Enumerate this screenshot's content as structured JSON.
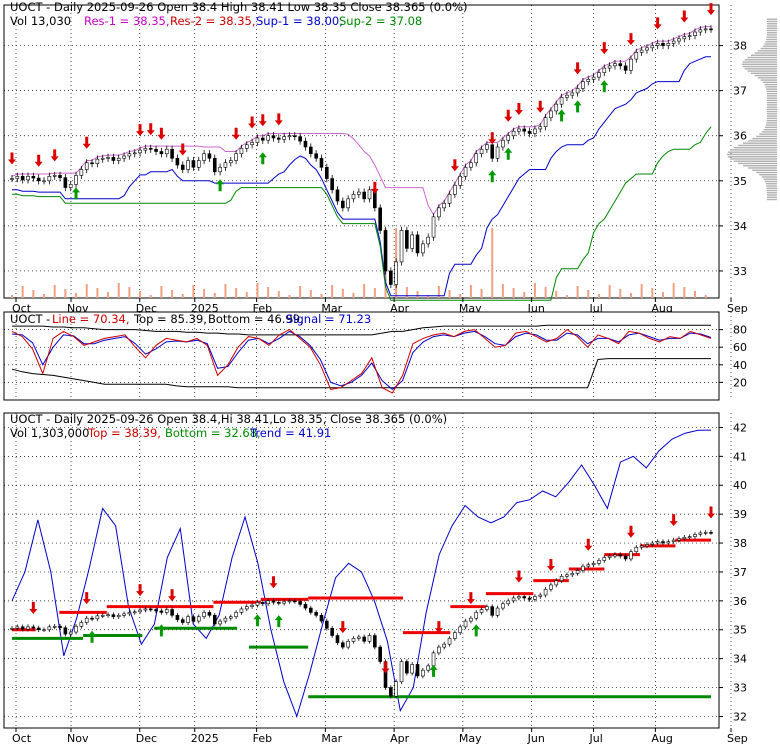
{
  "chart_data": [
    {
      "type": "candlestick",
      "header": {
        "title": "UOCT - Daily 2025-09-26 Open 38.4  High 38.41  Low 38.35  Close 38.365 (0.0%)",
        "vol": "Vol 13,030",
        "res1": "Res-1 = 38.35,",
        "res2": "Res-2 = 38.35,",
        "sup1": "Sup-1 = 38.00,",
        "sup2": "Sup-2 = 37.08"
      },
      "x_tick_labels": [
        "Oct",
        "Nov",
        "Dec",
        "2025",
        "Feb",
        "Mar",
        "Apr",
        "May",
        "Jun",
        "Jul",
        "Aug",
        "Sep"
      ],
      "x_tick_pos": [
        0.02,
        0.1,
        0.2,
        0.28,
        0.37,
        0.47,
        0.57,
        0.67,
        0.77,
        0.86,
        0.95,
        1.06
      ],
      "y_ticks": [
        33,
        34,
        35,
        36,
        37,
        38
      ],
      "ylim": [
        32.4,
        38.9
      ],
      "close": [
        35.05,
        35.1,
        35.02,
        35.1,
        35.06,
        35.0,
        35.0,
        35.1,
        35.12,
        35.07,
        34.85,
        34.92,
        35.12,
        35.25,
        35.4,
        35.38,
        35.48,
        35.5,
        35.52,
        35.45,
        35.5,
        35.55,
        35.6,
        35.62,
        35.68,
        35.72,
        35.7,
        35.65,
        35.6,
        35.7,
        35.5,
        35.35,
        35.25,
        35.45,
        35.3,
        35.45,
        35.6,
        35.5,
        35.2,
        35.3,
        35.4,
        35.45,
        35.6,
        35.72,
        35.8,
        35.85,
        35.95,
        35.9,
        36.0,
        35.95,
        35.92,
        35.98,
        36.0,
        35.98,
        35.88,
        35.75,
        35.6,
        35.5,
        35.3,
        35.05,
        34.8,
        34.55,
        34.4,
        34.6,
        34.7,
        34.75,
        34.6,
        34.8,
        34.4,
        33.9,
        33.0,
        32.7,
        33.2,
        33.9,
        33.5,
        33.8,
        33.4,
        33.6,
        33.75,
        34.2,
        34.4,
        34.5,
        34.7,
        34.9,
        35.1,
        35.3,
        35.4,
        35.6,
        35.7,
        35.8,
        35.5,
        35.75,
        35.9,
        36.0,
        36.1,
        36.15,
        36.1,
        36.05,
        36.15,
        36.2,
        36.4,
        36.55,
        36.7,
        36.85,
        36.9,
        36.95,
        37.05,
        37.2,
        37.25,
        37.3,
        37.4,
        37.5,
        37.55,
        37.6,
        37.55,
        37.45,
        37.7,
        37.85,
        37.9,
        37.95,
        38.0,
        38.05,
        38.0,
        38.05,
        38.1,
        38.15,
        38.2,
        38.22,
        38.3,
        38.35,
        38.37,
        38.365
      ],
      "res1": 38.35,
      "res2": 38.35,
      "sup1": 38.0,
      "sup2": 37.08,
      "up_markers": [
        8,
        27,
        32,
        62,
        64,
        71,
        73,
        76
      ],
      "down_markers": [
        0,
        5,
        8,
        14,
        24,
        26,
        28,
        32,
        42,
        45,
        47,
        50,
        68,
        83,
        90,
        93,
        95,
        99,
        106,
        111,
        116,
        121,
        126,
        131
      ],
      "legend_colors": {
        "res1": "#cc00cc",
        "res2": "#cc0000",
        "sup1": "#0000cc",
        "sup2": "#008800",
        "res_line": "#cc66cc",
        "env_top": "#0000cc",
        "env_bot": "#008800"
      }
    },
    {
      "type": "line",
      "header": {
        "title": "UOCT - Line = 70.34, Top = 85.39, Bottom = 46.99, Signal = 71.23",
        "ticker": "UOCT - ",
        "line": "Line = 70.34,",
        "top": "Top = 85.39,",
        "bottom": "Bottom = 46.99,",
        "signal": "Signal = 71.23"
      },
      "y_ticks": [
        20,
        40,
        60,
        80
      ],
      "ylim": [
        0,
        100
      ],
      "series": [
        {
          "values": [
            78,
            72,
            58,
            30,
            70,
            78,
            72,
            62,
            66,
            70,
            72,
            74,
            60,
            48,
            62,
            70,
            68,
            66,
            70,
            62,
            28,
            40,
            60,
            72,
            70,
            62,
            74,
            80,
            70,
            60,
            40,
            12,
            14,
            22,
            30,
            48,
            14,
            8,
            28,
            64,
            70,
            74,
            76,
            72,
            78,
            80,
            70,
            60,
            62,
            76,
            78,
            72,
            66,
            70,
            80,
            72,
            60,
            74,
            70,
            64,
            78,
            76,
            70,
            66,
            72,
            70,
            78,
            74,
            70
          ]
        },
        {
          "values": [
            75,
            74,
            65,
            40,
            60,
            74,
            73,
            64,
            64,
            68,
            70,
            72,
            64,
            52,
            58,
            66,
            67,
            66,
            68,
            64,
            36,
            38,
            54,
            68,
            70,
            64,
            70,
            78,
            72,
            62,
            46,
            20,
            16,
            20,
            28,
            42,
            22,
            12,
            22,
            54,
            66,
            72,
            74,
            72,
            76,
            78,
            72,
            64,
            62,
            72,
            76,
            74,
            68,
            68,
            76,
            74,
            64,
            70,
            70,
            66,
            74,
            76,
            72,
            68,
            70,
            70,
            76,
            75,
            71
          ]
        }
      ],
      "top_line": [
        84,
        84,
        84,
        84,
        83,
        83,
        82,
        82,
        81,
        80,
        80,
        80,
        80,
        79,
        78,
        78,
        78,
        77,
        77,
        76,
        76,
        75,
        75,
        74,
        74,
        74,
        74,
        74,
        74,
        74,
        74,
        74,
        74,
        74,
        74,
        74,
        76,
        78,
        78,
        80,
        82,
        83,
        84,
        84,
        84,
        84,
        84,
        84,
        84,
        84,
        84,
        84,
        85,
        85,
        85,
        85,
        85,
        85,
        85,
        85,
        85,
        85,
        85,
        85,
        85,
        85,
        85,
        85,
        85
      ],
      "bottom_line": [
        35,
        32,
        30,
        29,
        28,
        26,
        24,
        22,
        20,
        18,
        18,
        18,
        18,
        18,
        18,
        18,
        16,
        15,
        15,
        15,
        15,
        15,
        14,
        14,
        14,
        14,
        14,
        14,
        14,
        14,
        14,
        14,
        14,
        14,
        14,
        14,
        14,
        14,
        14,
        14,
        14,
        14,
        14,
        14,
        14,
        14,
        14,
        14,
        14,
        14,
        14,
        14,
        14,
        14,
        14,
        14,
        14,
        46,
        47,
        47,
        47,
        47,
        47,
        47,
        47,
        47,
        47,
        47,
        47
      ]
    },
    {
      "type": "line",
      "header": {
        "title": "UOCT - Daily 2025-09-26 Open 38.4,Hi 38.41,Lo 38.35, Close 38.365 (0.0%)",
        "vol": "Vol 1,303,000",
        "top": "Top = 38.39,",
        "bottom": "Bottom = 32.68,",
        "trend": "Trend = 41.91"
      },
      "y_ticks": [
        32,
        33,
        34,
        35,
        36,
        37,
        38,
        39,
        40,
        41,
        42
      ],
      "ylim": [
        31.6,
        42.5
      ],
      "band": [
        36.0,
        37.0,
        38.8,
        37.0,
        34.1,
        35.4,
        37.2,
        39.2,
        38.6,
        35.8,
        34.5,
        35.2,
        37.5,
        38.5,
        35.2,
        34.7,
        35.5,
        37.5,
        38.9,
        37.3,
        35.0,
        33.2,
        32.0,
        33.5,
        35.2,
        36.8,
        37.3,
        37.0,
        36.0,
        34.6,
        32.2,
        33.0,
        35.6,
        37.6,
        38.6,
        39.3,
        38.9,
        38.7,
        38.9,
        39.4,
        39.5,
        39.8,
        39.6,
        40.1,
        40.7,
        40.0,
        39.2,
        40.8,
        41.0,
        40.6,
        41.2,
        41.6,
        41.8,
        41.9,
        41.91
      ],
      "res_segments": [
        [
          0,
          2,
          35.0
        ],
        [
          4,
          8,
          35.6
        ],
        [
          8,
          14,
          35.8
        ],
        [
          14,
          17,
          35.8
        ],
        [
          17,
          21,
          35.95
        ],
        [
          21,
          25,
          36.05
        ],
        [
          25,
          33,
          36.1
        ],
        [
          33,
          37,
          34.9
        ],
        [
          37,
          40,
          35.8
        ],
        [
          40,
          44,
          36.25
        ],
        [
          44,
          47,
          36.7
        ],
        [
          47,
          50,
          37.1
        ],
        [
          50,
          53,
          37.6
        ],
        [
          53,
          56,
          37.9
        ],
        [
          56,
          59,
          38.1
        ]
      ],
      "sup_segments": [
        [
          0,
          6,
          34.7
        ],
        [
          6,
          11,
          34.8
        ],
        [
          12,
          19,
          35.05
        ],
        [
          20,
          25,
          34.4
        ],
        [
          25,
          59,
          32.68
        ]
      ],
      "up_markers": [
        7,
        13,
        21,
        23,
        36,
        40
      ],
      "down_markers": [
        3,
        10,
        18,
        22,
        36,
        46,
        52,
        59,
        64,
        70,
        75,
        80,
        86,
        92,
        97
      ]
    }
  ]
}
